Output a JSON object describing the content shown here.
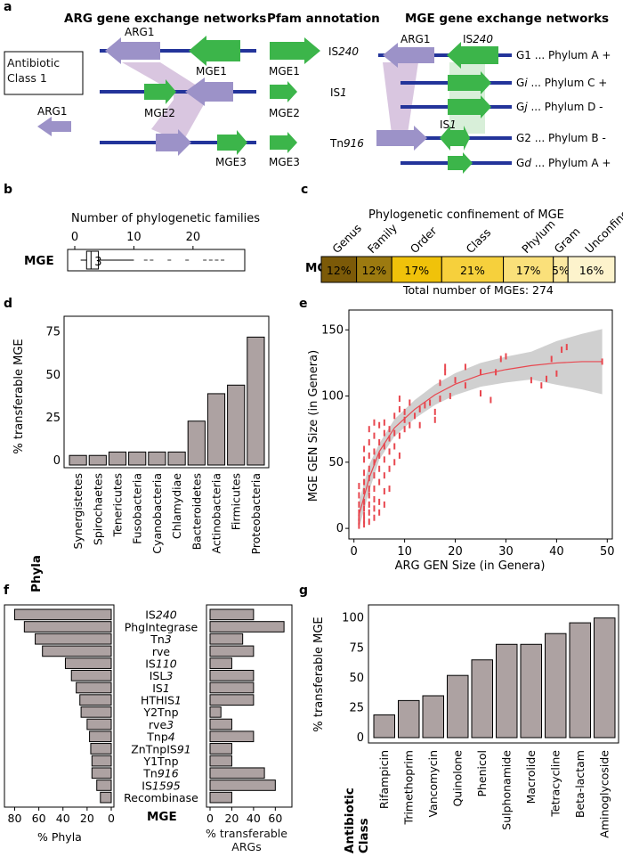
{
  "panel_a": {
    "label": "a",
    "headers": {
      "arg_networks": "ARG gene exchange networks",
      "pfam": "Pfam annotation",
      "mge_networks": "MGE gene exchange networks"
    },
    "antibiotic_class": "Antibiotic Class 1",
    "left_genes": {
      "arg_left": "ARG1",
      "arg_top": "ARG1",
      "mge1": "MGE1",
      "mge2": "MGE2",
      "mge3": "MGE3"
    },
    "pfam_labels": {
      "mge1": "MGE1",
      "mge2": "MGE2",
      "mge3": "MGE3"
    },
    "pfam_annotations": {
      "is240_prefix": "IS",
      "is240_num": "240",
      "is1_prefix": "IS",
      "is1_num": "1",
      "tn916_prefix": "Tn",
      "tn916_num": "916"
    },
    "right_genes": {
      "arg1": "ARG1",
      "is240_prefix": "IS",
      "is240_num": "240",
      "is1_prefix": "IS",
      "is1_num": "1"
    },
    "genomes": [
      {
        "g": "G1",
        "sub": "",
        "text": " ... Phylum A +"
      },
      {
        "g": "G",
        "sub": "i",
        "text": " ... Phylum C +"
      },
      {
        "g": "G",
        "sub": "j",
        "text": " ... Phylum D -"
      },
      {
        "g": "G2",
        "sub": "",
        "text": " ... Phylum B -"
      },
      {
        "g": "G",
        "sub": "d",
        "text": " ... Phylum A +"
      }
    ],
    "colors": {
      "arg": "#9c92c8",
      "mge": "#3cb54a",
      "line": "#23349a",
      "link": "#d9c6e0"
    }
  },
  "panel_b": {
    "label": "b",
    "title": "Number of phylogenetic families",
    "row_label": "MGE",
    "ticks": [
      "0",
      "10",
      "20"
    ],
    "median_label": "3",
    "chart_data": {
      "type": "boxplot",
      "median": 3,
      "q1": 2,
      "q3": 4,
      "whisker_low": 1,
      "whisker_high": 10,
      "outliers": [
        12,
        13,
        16,
        19,
        22,
        23,
        24,
        25
      ],
      "xlim": [
        0,
        28
      ]
    }
  },
  "panel_c": {
    "label": "c",
    "title": "Phylogenetic confinement of MGE",
    "row_label": "MGE",
    "total": "Total number of MGEs: 274",
    "chart_data": {
      "type": "stacked-bar",
      "categories": [
        "Genus",
        "Family",
        "Order",
        "Class",
        "Phylum",
        "Gram",
        "Unconfined"
      ],
      "values": [
        12,
        12,
        17,
        21,
        17,
        5,
        16
      ],
      "labels": [
        "12%",
        "12%",
        "17%",
        "21%",
        "17%",
        "5%",
        "16%"
      ],
      "colors": [
        "#7c5a08",
        "#9c7a10",
        "#f0c20a",
        "#f6d03c",
        "#fae07a",
        "#fbe9a2",
        "#fdf3cc"
      ]
    }
  },
  "panel_d": {
    "label": "d",
    "xlabel_bold": "Phyla",
    "chart_data": {
      "type": "bar",
      "ylabel": "% transferable MGE",
      "ylim": [
        0,
        80
      ],
      "yticks": [
        "0",
        "25",
        "50",
        "75"
      ],
      "categories": [
        "Synergistetes",
        "Spirochaetes",
        "Tenericutes",
        "Fusobacteria",
        "Cyanobacteria",
        "Chlamydiae",
        "Bacteroidetes",
        "Actinobacteria",
        "Firmicutes",
        "Proteobacteria"
      ],
      "values": [
        3,
        3,
        5,
        5,
        5,
        5,
        23,
        39,
        44,
        72
      ]
    }
  },
  "panel_e": {
    "label": "e",
    "chart_data": {
      "type": "scatter",
      "xlabel": "ARG GEN Size (in Genera)",
      "ylabel": "MGE GEN Size (in Genera)",
      "xlim": [
        -1,
        51
      ],
      "ylim": [
        -8,
        165
      ],
      "xticks": [
        "0",
        "10",
        "20",
        "30",
        "40",
        "50"
      ],
      "yticks": [
        "0",
        "50",
        "100",
        "150"
      ],
      "points": [
        [
          1,
          2
        ],
        [
          1,
          5
        ],
        [
          1,
          8
        ],
        [
          1,
          12
        ],
        [
          1,
          18
        ],
        [
          1,
          25
        ],
        [
          1,
          32
        ],
        [
          2,
          3
        ],
        [
          2,
          6
        ],
        [
          2,
          10
        ],
        [
          2,
          15
        ],
        [
          2,
          20
        ],
        [
          2,
          28
        ],
        [
          2,
          35
        ],
        [
          2,
          42
        ],
        [
          2,
          52
        ],
        [
          2,
          60
        ],
        [
          3,
          5
        ],
        [
          3,
          12
        ],
        [
          3,
          18
        ],
        [
          3,
          25
        ],
        [
          3,
          30
        ],
        [
          3,
          38
        ],
        [
          3,
          45
        ],
        [
          3,
          55
        ],
        [
          3,
          65
        ],
        [
          3,
          75
        ],
        [
          4,
          8
        ],
        [
          4,
          15
        ],
        [
          4,
          22
        ],
        [
          4,
          30
        ],
        [
          4,
          40
        ],
        [
          4,
          50
        ],
        [
          4,
          58
        ],
        [
          4,
          70
        ],
        [
          4,
          80
        ],
        [
          5,
          12
        ],
        [
          5,
          20
        ],
        [
          5,
          35
        ],
        [
          5,
          45
        ],
        [
          5,
          55
        ],
        [
          5,
          65
        ],
        [
          5,
          78
        ],
        [
          6,
          18
        ],
        [
          6,
          28
        ],
        [
          6,
          40
        ],
        [
          6,
          52
        ],
        [
          6,
          62
        ],
        [
          6,
          72
        ],
        [
          6,
          80
        ],
        [
          7,
          30
        ],
        [
          7,
          45
        ],
        [
          7,
          58
        ],
        [
          7,
          68
        ],
        [
          7,
          75
        ],
        [
          8,
          50
        ],
        [
          8,
          62
        ],
        [
          8,
          72
        ],
        [
          8,
          85
        ],
        [
          9,
          55
        ],
        [
          9,
          70
        ],
        [
          9,
          90
        ],
        [
          9,
          98
        ],
        [
          10,
          75
        ],
        [
          10,
          82
        ],
        [
          10,
          88
        ],
        [
          11,
          78
        ],
        [
          11,
          95
        ],
        [
          12,
          85
        ],
        [
          13,
          78
        ],
        [
          13,
          90
        ],
        [
          14,
          93
        ],
        [
          15,
          95
        ],
        [
          16,
          82
        ],
        [
          16,
          88
        ],
        [
          17,
          98
        ],
        [
          17,
          110
        ],
        [
          18,
          118
        ],
        [
          18,
          122
        ],
        [
          19,
          100
        ],
        [
          20,
          112
        ],
        [
          22,
          108
        ],
        [
          22,
          122
        ],
        [
          25,
          102
        ],
        [
          25,
          118
        ],
        [
          27,
          97
        ],
        [
          28,
          118
        ],
        [
          29,
          128
        ],
        [
          30,
          130
        ],
        [
          35,
          112
        ],
        [
          37,
          108
        ],
        [
          38,
          113
        ],
        [
          39,
          128
        ],
        [
          40,
          117
        ],
        [
          41,
          135
        ],
        [
          42,
          137
        ],
        [
          49,
          126
        ]
      ],
      "fit": [
        [
          1,
          10
        ],
        [
          3,
          38
        ],
        [
          5,
          58
        ],
        [
          8,
          76
        ],
        [
          12,
          90
        ],
        [
          16,
          101
        ],
        [
          20,
          109
        ],
        [
          25,
          116
        ],
        [
          30,
          120
        ],
        [
          35,
          123
        ],
        [
          40,
          125
        ],
        [
          45,
          126
        ],
        [
          49,
          126
        ]
      ],
      "point_color": "#e8474f",
      "band_color": "#c8c8c8"
    }
  },
  "panel_f": {
    "label": "f",
    "center_label": "MGE",
    "left_xlabel": "% Phyla",
    "right_xlabel": "% transferable ARGs",
    "left_ticks": [
      "80",
      "60",
      "40",
      "20",
      "0"
    ],
    "right_ticks": [
      "0",
      "20",
      "40",
      "60"
    ],
    "mge_labels": [
      {
        "p": "IS",
        "i": "240"
      },
      {
        "p": "PhgIntegrase",
        "i": ""
      },
      {
        "p": "Tn",
        "i": "3"
      },
      {
        "p": "rve",
        "i": ""
      },
      {
        "p": "IS",
        "i": "110"
      },
      {
        "p": "ISL",
        "i": "3"
      },
      {
        "p": "IS",
        "i": "1"
      },
      {
        "p": "HTHIS",
        "i": "1"
      },
      {
        "p": "Y2Tnp",
        "i": ""
      },
      {
        "p": "rve",
        "i": "3"
      },
      {
        "p": "Tnp",
        "i": "4"
      },
      {
        "p": "ZnTnpIS",
        "i": "91"
      },
      {
        "p": "Y1Tnp",
        "i": ""
      },
      {
        "p": "Tn",
        "i": "916"
      },
      {
        "p": "IS",
        "i": "1595"
      },
      {
        "p": "Recombinase",
        "i": ""
      }
    ],
    "chart_data": {
      "type": "bar",
      "orientation": "horizontal",
      "categories": [
        "IS240",
        "PhgIntegrase",
        "Tn3",
        "rve",
        "IS110",
        "ISL3",
        "IS1",
        "HTHIS1",
        "Y2Tnp",
        "rve3",
        "Tnp4",
        "ZnTnpIS91",
        "Y1Tnp",
        "Tn916",
        "IS1595",
        "Recombinase"
      ],
      "series": [
        {
          "name": "% Phyla",
          "values": [
            80,
            72,
            63,
            57,
            38,
            33,
            29,
            26,
            25,
            20,
            18,
            17,
            16,
            16,
            12,
            9
          ]
        },
        {
          "name": "% transferable ARGs",
          "values": [
            40,
            68,
            30,
            40,
            20,
            40,
            40,
            40,
            10,
            20,
            40,
            20,
            20,
            50,
            60,
            20
          ]
        }
      ],
      "left_xlim": [
        0,
        87
      ],
      "right_xlim": [
        0,
        72
      ]
    }
  },
  "panel_g": {
    "label": "g",
    "xlabel_bold_1": "Antibiotic",
    "xlabel_bold_2": "Class",
    "chart_data": {
      "type": "bar",
      "ylabel": "% transferable MGE",
      "ylim": [
        0,
        108
      ],
      "yticks": [
        "0",
        "25",
        "50",
        "75",
        "100"
      ],
      "categories": [
        "Rifampicin",
        "Trimethoprim",
        "Vancomycin",
        "Quinolone",
        "Phenicol",
        "Sulphonamide",
        "Macrolide",
        "Tetracycline",
        "Beta-lactam",
        "Aminoglycoside"
      ],
      "values": [
        19,
        31,
        35,
        52,
        65,
        78,
        78,
        87,
        96,
        100
      ]
    }
  }
}
